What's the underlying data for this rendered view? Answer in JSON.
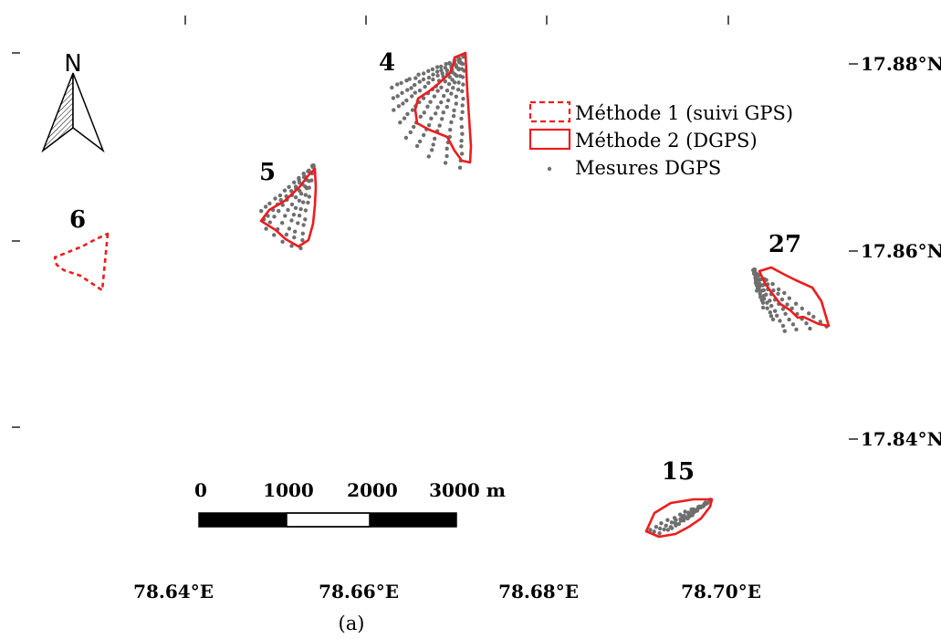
{
  "map": {
    "x_axis": {
      "ticks": [
        {
          "value": 78.64,
          "label": "78.64°E"
        },
        {
          "value": 78.66,
          "label": "78.66°E"
        },
        {
          "value": 78.68,
          "label": "78.68°E"
        },
        {
          "value": 78.7,
          "label": "78.70°E"
        }
      ]
    },
    "y_axis": {
      "ticks": [
        {
          "value": 17.88,
          "label": "17.88°N"
        },
        {
          "value": 17.86,
          "label": "17.86°N"
        },
        {
          "value": 17.84,
          "label": "17.84°N"
        }
      ]
    },
    "north_arrow": {
      "label": "N"
    },
    "legend": {
      "items": [
        {
          "label": "Méthode 1 (suivi GPS)",
          "symbol": "dashed-red-rectangle"
        },
        {
          "label": "Méthode 2 (DGPS)",
          "symbol": "solid-red-rectangle"
        },
        {
          "label": "Mesures DGPS",
          "symbol": "gray-dot"
        }
      ]
    },
    "scale_bar": {
      "labels": [
        "0",
        "1000",
        "2000",
        "3000 m"
      ]
    },
    "parcels": [
      {
        "id": "4",
        "label": "4",
        "method": "DGPS"
      },
      {
        "id": "5",
        "label": "5",
        "method": "DGPS"
      },
      {
        "id": "6",
        "label": "6",
        "method": "GPS tracking"
      },
      {
        "id": "27",
        "label": "27",
        "method": "DGPS"
      },
      {
        "id": "15",
        "label": "15",
        "method": "DGPS"
      }
    ],
    "colors": {
      "boundary": "#ee1c1c",
      "points": "#6e6e6e",
      "text": "#000000"
    }
  },
  "caption": "(a)"
}
